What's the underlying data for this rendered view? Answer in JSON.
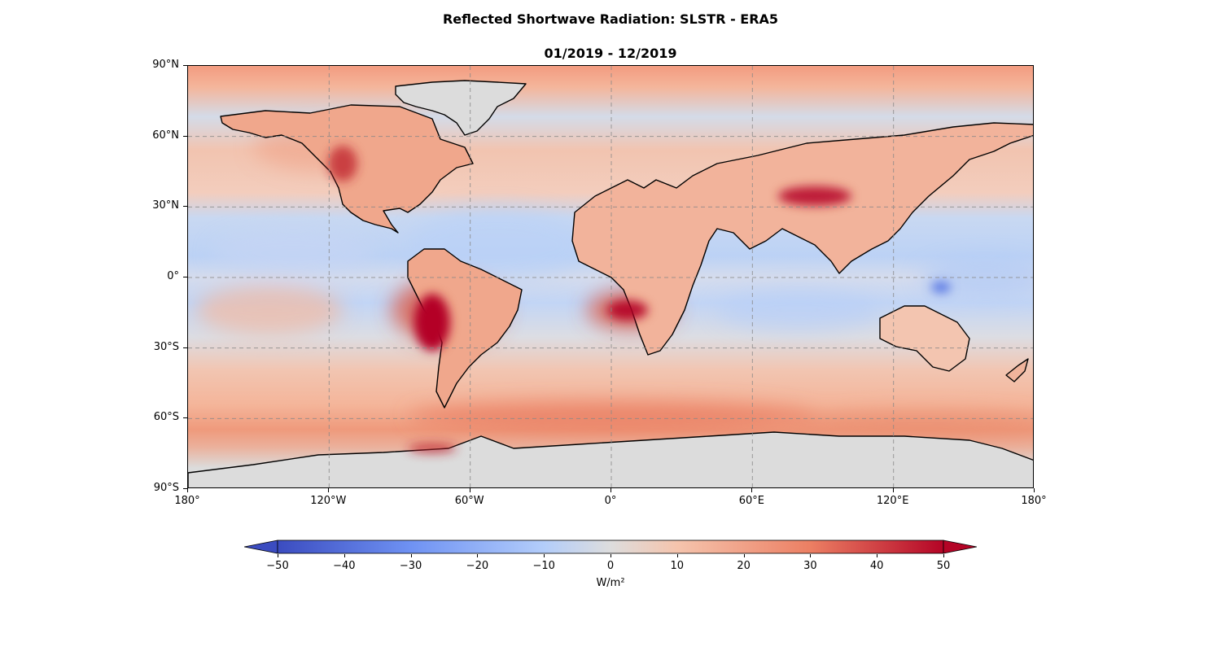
{
  "title": "Reflected Shortwave Radiation: SLSTR - ERA5",
  "subtitle": "01/2019 - 12/2019",
  "map": {
    "type": "global difference map (equirectangular)",
    "grid": true,
    "lat_ticks": [
      "90°N",
      "60°N",
      "30°N",
      "0°",
      "30°S",
      "60°S",
      "90°S"
    ],
    "lon_ticks": [
      "180°",
      "120°W",
      "60°W",
      "0°",
      "60°E",
      "120°E",
      "180°"
    ],
    "notable_regions": [
      {
        "name": "Peru/Chile stratocumulus deck",
        "value": 50
      },
      {
        "name": "Namibia/Angola stratocumulus deck",
        "value": 40
      },
      {
        "name": "Tibetan Plateau",
        "value": 45
      },
      {
        "name": "Southern Ocean 60°S belt",
        "value": 25
      },
      {
        "name": "Tropical Pacific",
        "value": -10
      },
      {
        "name": "New Guinea",
        "value": -30
      }
    ]
  },
  "colorbar": {
    "colormap": "coolwarm",
    "min": -50,
    "max": 50,
    "ticks": [
      "−50",
      "−40",
      "−30",
      "−20",
      "−10",
      "0",
      "10",
      "20",
      "30",
      "40",
      "50"
    ],
    "extend": "both",
    "units": "W/m²",
    "colors": {
      "low": "#3b4cc0",
      "mid": "#dddddd",
      "high": "#b40426"
    }
  }
}
